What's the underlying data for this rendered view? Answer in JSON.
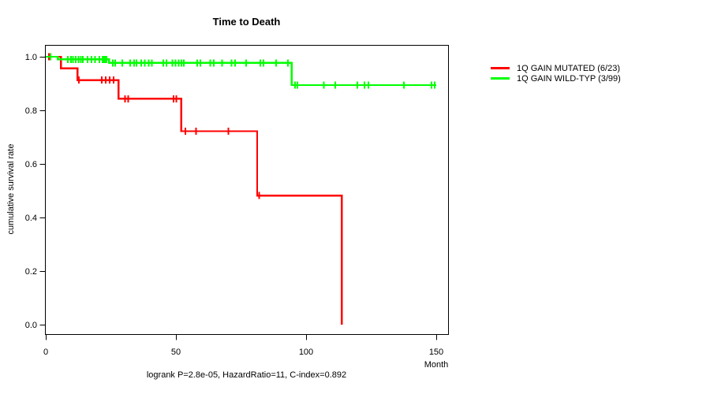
{
  "chart_data": {
    "type": "line",
    "variant": "kaplan-meier-step",
    "title": "Time to Death",
    "xlabel": "Month",
    "ylabel": "cumulative survival rate",
    "footnote": "logrank P=2.8e-05, HazardRatio=11, C-index=0.892",
    "grid": false,
    "legend_position": "outside-right",
    "x_axis": {
      "range": [
        0,
        155
      ],
      "ticks": [
        {
          "label": "0",
          "value": 0
        },
        {
          "label": "50",
          "value": 50
        },
        {
          "label": "100",
          "value": 100
        },
        {
          "label": "150",
          "value": 150
        }
      ]
    },
    "y_axis": {
      "range": [
        0.0,
        1.0
      ],
      "ticks": [
        {
          "label": "0.0",
          "value": 0.0
        },
        {
          "label": "0.2",
          "value": 0.2
        },
        {
          "label": "0.4",
          "value": 0.4
        },
        {
          "label": "0.6",
          "value": 0.6
        },
        {
          "label": "0.8",
          "value": 0.8
        },
        {
          "label": "1.0",
          "value": 1.0
        }
      ]
    },
    "series": [
      {
        "name": "1Q GAIN MUTATED (6/23)",
        "color": "#FF0000",
        "steps": [
          [
            0,
            1.0
          ],
          [
            5.8,
            0.957
          ],
          [
            12.2,
            0.913
          ],
          [
            27.9,
            0.843
          ],
          [
            52.1,
            0.722
          ],
          [
            81.2,
            0.482
          ],
          [
            113.7,
            0.0
          ]
        ],
        "end_time": 113.7,
        "censor_marks": [
          [
            1.2,
            1.0
          ],
          [
            12.7,
            0.913
          ],
          [
            21.5,
            0.913
          ],
          [
            23.0,
            0.913
          ],
          [
            24.5,
            0.913
          ],
          [
            26.0,
            0.913
          ],
          [
            30.4,
            0.843
          ],
          [
            31.7,
            0.843
          ],
          [
            49.1,
            0.843
          ],
          [
            50.1,
            0.843
          ],
          [
            53.6,
            0.722
          ],
          [
            57.7,
            0.722
          ],
          [
            70.2,
            0.722
          ],
          [
            81.9,
            0.482
          ]
        ]
      },
      {
        "name": "1Q GAIN WILD-TYP (3/99)",
        "color": "#00FF00",
        "steps": [
          [
            0,
            1.0
          ],
          [
            4.6,
            0.99
          ],
          [
            24.3,
            0.977
          ],
          [
            94.5,
            0.894
          ]
        ],
        "end_time": 150,
        "censor_marks": [
          [
            1.8,
            1.0
          ],
          [
            8.5,
            0.99
          ],
          [
            9.7,
            0.99
          ],
          [
            10.5,
            0.99
          ],
          [
            11.5,
            0.99
          ],
          [
            12.5,
            0.99
          ],
          [
            13.5,
            0.99
          ],
          [
            14.3,
            0.99
          ],
          [
            16.0,
            0.99
          ],
          [
            17.6,
            0.99
          ],
          [
            19.0,
            0.99
          ],
          [
            20.6,
            0.99
          ],
          [
            21.8,
            0.99
          ],
          [
            22.3,
            0.99
          ],
          [
            22.8,
            0.99
          ],
          [
            23.3,
            0.99
          ],
          [
            25.7,
            0.977
          ],
          [
            26.6,
            0.977
          ],
          [
            29.4,
            0.977
          ],
          [
            32.4,
            0.977
          ],
          [
            33.9,
            0.977
          ],
          [
            34.9,
            0.977
          ],
          [
            36.7,
            0.977
          ],
          [
            38.0,
            0.977
          ],
          [
            39.5,
            0.977
          ],
          [
            40.8,
            0.977
          ],
          [
            45.1,
            0.977
          ],
          [
            46.4,
            0.977
          ],
          [
            48.6,
            0.977
          ],
          [
            49.9,
            0.977
          ],
          [
            51.1,
            0.977
          ],
          [
            52.1,
            0.977
          ],
          [
            53.1,
            0.977
          ],
          [
            58.2,
            0.977
          ],
          [
            59.4,
            0.977
          ],
          [
            63.2,
            0.977
          ],
          [
            64.5,
            0.977
          ],
          [
            67.8,
            0.977
          ],
          [
            71.3,
            0.977
          ],
          [
            72.8,
            0.977
          ],
          [
            76.9,
            0.977
          ],
          [
            82.4,
            0.977
          ],
          [
            83.6,
            0.977
          ],
          [
            88.5,
            0.977
          ],
          [
            93.0,
            0.977
          ],
          [
            95.8,
            0.894
          ],
          [
            96.7,
            0.894
          ],
          [
            106.8,
            0.894
          ],
          [
            111.2,
            0.894
          ],
          [
            119.7,
            0.894
          ],
          [
            122.4,
            0.894
          ],
          [
            123.9,
            0.894
          ],
          [
            137.6,
            0.894
          ],
          [
            148.2,
            0.894
          ],
          [
            149.4,
            0.894
          ]
        ]
      }
    ]
  }
}
